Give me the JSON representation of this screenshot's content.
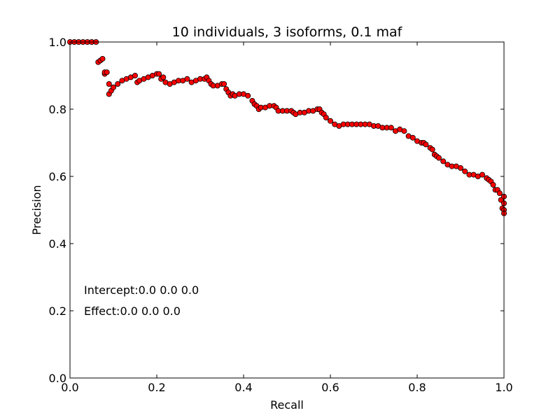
{
  "chart_data": {
    "type": "scatter",
    "title": "10 individuals, 3 isoforms, 0.1 maf",
    "xlabel": "Recall",
    "ylabel": "Precision",
    "xlim": [
      0.0,
      1.0
    ],
    "ylim": [
      0.0,
      1.0
    ],
    "xticks": [
      "0.0",
      "0.2",
      "0.4",
      "0.6",
      "0.8",
      "1.0"
    ],
    "yticks": [
      "0.0",
      "0.2",
      "0.4",
      "0.6",
      "0.8",
      "1.0"
    ],
    "grid": false,
    "marker_color": "#ff0000",
    "marker_edge_color": "#000000",
    "annotations": [
      "Intercept:0.0 0.0 0.0",
      "Effect:0.0 0.0 0.0"
    ],
    "series": [
      {
        "x": [
          0.0,
          0.01,
          0.02,
          0.03,
          0.04,
          0.05,
          0.06,
          0.065,
          0.07,
          0.075,
          0.08,
          0.08,
          0.085,
          0.09,
          0.09,
          0.095,
          0.1,
          0.11,
          0.12,
          0.13,
          0.14,
          0.15,
          0.155,
          0.16,
          0.17,
          0.18,
          0.19,
          0.2,
          0.205,
          0.21,
          0.215,
          0.22,
          0.23,
          0.24,
          0.25,
          0.26,
          0.27,
          0.28,
          0.29,
          0.3,
          0.31,
          0.315,
          0.32,
          0.325,
          0.33,
          0.34,
          0.35,
          0.355,
          0.36,
          0.365,
          0.37,
          0.375,
          0.38,
          0.39,
          0.4,
          0.41,
          0.42,
          0.425,
          0.43,
          0.435,
          0.44,
          0.45,
          0.46,
          0.47,
          0.475,
          0.48,
          0.49,
          0.5,
          0.51,
          0.515,
          0.52,
          0.53,
          0.54,
          0.55,
          0.56,
          0.57,
          0.575,
          0.58,
          0.585,
          0.59,
          0.6,
          0.61,
          0.62,
          0.63,
          0.64,
          0.65,
          0.66,
          0.67,
          0.68,
          0.69,
          0.7,
          0.71,
          0.72,
          0.73,
          0.74,
          0.75,
          0.76,
          0.77,
          0.78,
          0.79,
          0.8,
          0.81,
          0.815,
          0.82,
          0.83,
          0.835,
          0.84,
          0.845,
          0.85,
          0.86,
          0.87,
          0.88,
          0.89,
          0.9,
          0.91,
          0.92,
          0.93,
          0.94,
          0.95,
          0.96,
          0.965,
          0.97,
          0.975,
          0.98,
          0.985,
          0.99,
          0.993,
          0.996,
          1.0,
          1.0,
          1.0,
          1.0
        ],
        "y": [
          1.0,
          1.0,
          1.0,
          1.0,
          1.0,
          1.0,
          1.0,
          0.94,
          0.945,
          0.95,
          0.905,
          0.91,
          0.91,
          0.875,
          0.845,
          0.855,
          0.865,
          0.875,
          0.885,
          0.89,
          0.895,
          0.9,
          0.88,
          0.885,
          0.89,
          0.895,
          0.9,
          0.905,
          0.905,
          0.89,
          0.895,
          0.88,
          0.875,
          0.88,
          0.885,
          0.885,
          0.89,
          0.88,
          0.885,
          0.89,
          0.89,
          0.895,
          0.885,
          0.875,
          0.87,
          0.87,
          0.875,
          0.875,
          0.86,
          0.85,
          0.84,
          0.845,
          0.84,
          0.845,
          0.845,
          0.84,
          0.825,
          0.815,
          0.81,
          0.8,
          0.805,
          0.805,
          0.81,
          0.81,
          0.805,
          0.795,
          0.795,
          0.795,
          0.795,
          0.79,
          0.785,
          0.79,
          0.79,
          0.795,
          0.795,
          0.8,
          0.8,
          0.79,
          0.785,
          0.775,
          0.765,
          0.755,
          0.75,
          0.755,
          0.755,
          0.755,
          0.755,
          0.755,
          0.755,
          0.755,
          0.75,
          0.75,
          0.745,
          0.745,
          0.745,
          0.735,
          0.74,
          0.735,
          0.72,
          0.715,
          0.705,
          0.7,
          0.7,
          0.695,
          0.685,
          0.68,
          0.665,
          0.66,
          0.655,
          0.645,
          0.635,
          0.63,
          0.63,
          0.625,
          0.615,
          0.605,
          0.605,
          0.6,
          0.605,
          0.595,
          0.59,
          0.585,
          0.575,
          0.56,
          0.56,
          0.55,
          0.53,
          0.505,
          0.5,
          0.52,
          0.54,
          0.49
        ]
      }
    ]
  }
}
